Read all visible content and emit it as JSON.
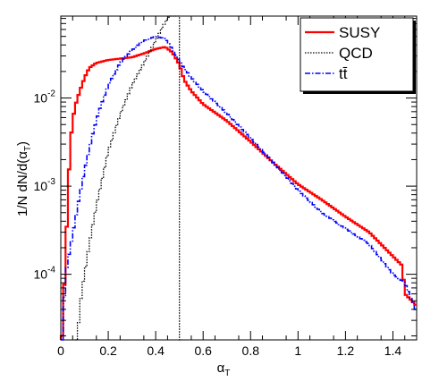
{
  "chart_data": {
    "type": "line",
    "title": "",
    "xlabel": "α",
    "xlabel_sub": "T",
    "ylabel": "1/N dN/d(α",
    "ylabel_sub": "T",
    "ylabel_close": ")",
    "x_scale": "linear",
    "y_scale": "log",
    "xlim": [
      0,
      1.5
    ],
    "ylim": [
      1.8e-05,
      0.085
    ],
    "x_ticks": [
      0,
      0.2,
      0.4,
      0.6,
      0.8,
      1,
      1.2,
      1.4
    ],
    "x_tick_labels": [
      "0",
      "0.2",
      "0.4",
      "0.6",
      "0.8",
      "1",
      "1.2",
      "1.4"
    ],
    "y_tick_labels": [
      {
        "value": 0.0001,
        "base": "10",
        "exp": "-4"
      },
      {
        "value": 0.001,
        "base": "10",
        "exp": "-3"
      },
      {
        "value": 0.01,
        "base": "10",
        "exp": "-2"
      }
    ],
    "grid": false,
    "legend_position": "top-right",
    "bin_width": 0.01,
    "series": [
      {
        "name": "SUSY",
        "color": "#ff0000",
        "style": "solid",
        "knots": [
          [
            0.005,
            2e-05
          ],
          [
            0.02,
            0.00015
          ],
          [
            0.03,
            0.0008
          ],
          [
            0.04,
            0.003
          ],
          [
            0.05,
            0.0055
          ],
          [
            0.06,
            0.008
          ],
          [
            0.08,
            0.012
          ],
          [
            0.1,
            0.017
          ],
          [
            0.12,
            0.022
          ],
          [
            0.15,
            0.025
          ],
          [
            0.2,
            0.027
          ],
          [
            0.3,
            0.029
          ],
          [
            0.35,
            0.032
          ],
          [
            0.4,
            0.036
          ],
          [
            0.44,
            0.038
          ],
          [
            0.47,
            0.033
          ],
          [
            0.5,
            0.024
          ],
          [
            0.52,
            0.016
          ],
          [
            0.55,
            0.012
          ],
          [
            0.6,
            0.0085
          ],
          [
            0.7,
            0.0055
          ],
          [
            0.8,
            0.0032
          ],
          [
            0.9,
            0.0018
          ],
          [
            1.0,
            0.00105
          ],
          [
            1.1,
            0.0007
          ],
          [
            1.2,
            0.00045
          ],
          [
            1.3,
            0.0003
          ],
          [
            1.4,
            0.00016
          ],
          [
            1.44,
            0.000125
          ],
          [
            1.45,
            6e-05
          ],
          [
            1.48,
            5e-05
          ],
          [
            1.495,
            4.5e-05
          ]
        ]
      },
      {
        "name": "QCD",
        "color": "#000000",
        "style": "dotted",
        "knots": [
          [
            0.06,
            1e-05
          ],
          [
            0.07,
            2e-05
          ],
          [
            0.08,
            4e-05
          ],
          [
            0.09,
            7e-05
          ],
          [
            0.1,
            0.0001
          ],
          [
            0.12,
            0.00022
          ],
          [
            0.15,
            0.0006
          ],
          [
            0.2,
            0.0025
          ],
          [
            0.25,
            0.0065
          ],
          [
            0.3,
            0.014
          ],
          [
            0.35,
            0.025
          ],
          [
            0.4,
            0.045
          ],
          [
            0.43,
            0.065
          ],
          [
            0.45,
            0.08
          ],
          [
            0.47,
            0.09
          ],
          [
            0.5,
            0.09
          ],
          [
            0.505,
            5e-06
          ]
        ]
      },
      {
        "name": "tt̄",
        "color": "#0000ff",
        "style": "dashdot",
        "knots": [
          [
            0.005,
            1e-05
          ],
          [
            0.01,
            3e-05
          ],
          [
            0.02,
            0.0001
          ],
          [
            0.04,
            0.0002
          ],
          [
            0.06,
            0.0004
          ],
          [
            0.08,
            0.0008
          ],
          [
            0.1,
            0.0015
          ],
          [
            0.13,
            0.0035
          ],
          [
            0.16,
            0.007
          ],
          [
            0.2,
            0.014
          ],
          [
            0.25,
            0.025
          ],
          [
            0.3,
            0.035
          ],
          [
            0.35,
            0.045
          ],
          [
            0.4,
            0.05
          ],
          [
            0.44,
            0.047
          ],
          [
            0.47,
            0.036
          ],
          [
            0.5,
            0.026
          ],
          [
            0.55,
            0.017
          ],
          [
            0.6,
            0.012
          ],
          [
            0.7,
            0.0067
          ],
          [
            0.8,
            0.0035
          ],
          [
            0.9,
            0.0018
          ],
          [
            1.0,
            0.0009
          ],
          [
            1.1,
            0.0005
          ],
          [
            1.2,
            0.00033
          ],
          [
            1.3,
            0.00022
          ],
          [
            1.4,
            0.0001
          ],
          [
            1.45,
            8e-05
          ],
          [
            1.495,
            4e-05
          ]
        ]
      }
    ]
  }
}
